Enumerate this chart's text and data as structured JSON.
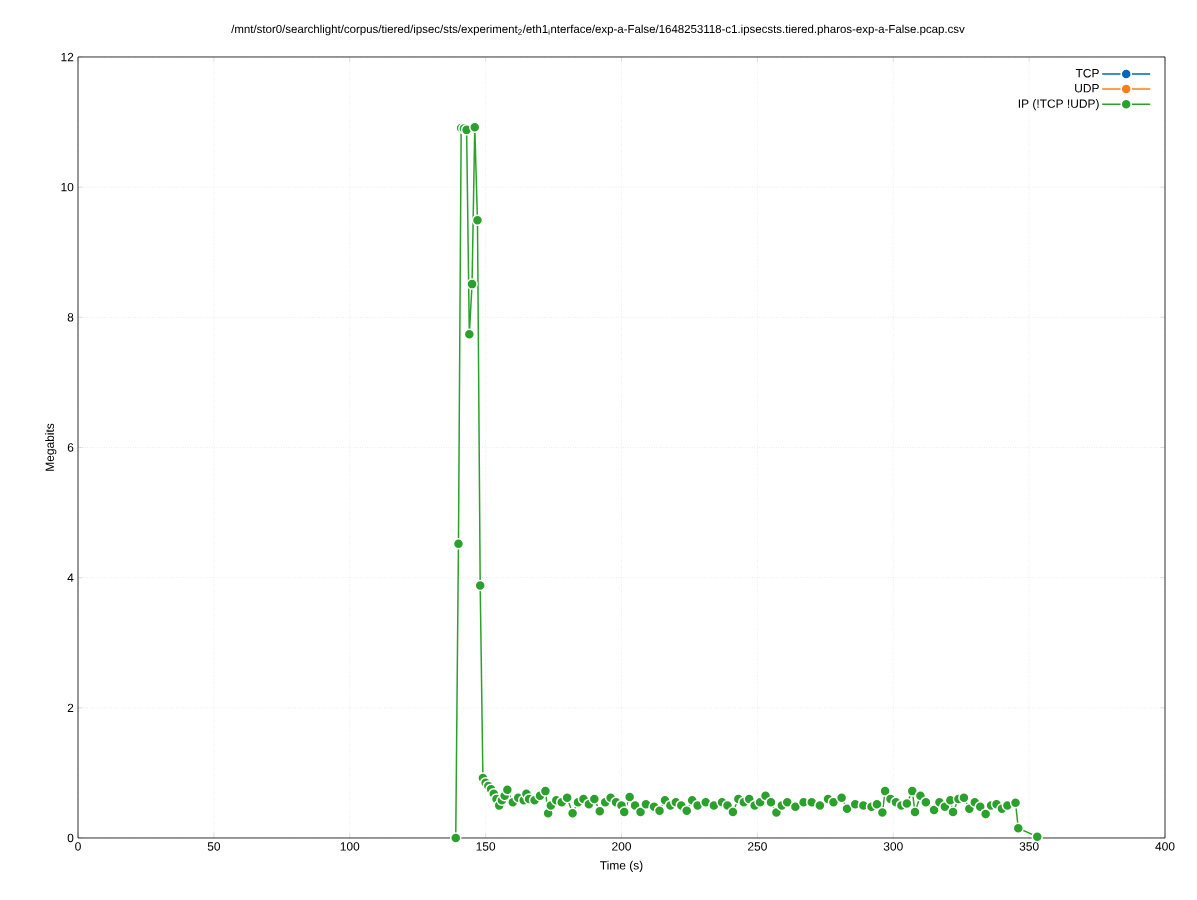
{
  "chart_data": {
    "type": "line",
    "title": "/mnt/stor0/searchlight/corpus/tiered/ipsec/sts/experiment$_{2}$/eth1$_{i}$nterface/exp-a-False/1648253118-c1.ipsecsts.tiered.pharos-exp-a-False.pcap.csv",
    "xlabel": "Time (s)",
    "ylabel": "Megabits",
    "xlim": [
      0,
      400
    ],
    "xticks": [
      0,
      50,
      100,
      150,
      200,
      250,
      300,
      350,
      400
    ],
    "ylim": [
      0,
      12
    ],
    "yticks": [
      0,
      2,
      4,
      6,
      8,
      10,
      12
    ],
    "grid": true,
    "legend": "top right",
    "marker": "circle",
    "line_style": "solid",
    "series": [
      {
        "name": "TCP",
        "color": "#0066b8"
      },
      {
        "name": "UDP",
        "color": "#ff7f0e"
      },
      {
        "name": "IP (!TCP  !UDP)",
        "color": "#2ca02c",
        "x": [
          139,
          140,
          141,
          142,
          143,
          144,
          145,
          146,
          147,
          148,
          149,
          150,
          151,
          152,
          153,
          154,
          155,
          156,
          157,
          158,
          160,
          162,
          164,
          165,
          166,
          168,
          170,
          172,
          173,
          174,
          176,
          178,
          180,
          182,
          184,
          186,
          188,
          190,
          192,
          194,
          196,
          198,
          200,
          201,
          203,
          205,
          207,
          209,
          212,
          214,
          216,
          218,
          220,
          222,
          224,
          226,
          228,
          231,
          234,
          237,
          239,
          241,
          243,
          245,
          247,
          249,
          251,
          253,
          255,
          257,
          259,
          261,
          264,
          267,
          270,
          273,
          276,
          278,
          281,
          283,
          286,
          289,
          292,
          294,
          296,
          297,
          299,
          301,
          303,
          305,
          307,
          308,
          310,
          312,
          315,
          317,
          319,
          321,
          322,
          324,
          326,
          328,
          330,
          332,
          334,
          336,
          338,
          340,
          342,
          345,
          346,
          353
        ],
        "values": [
          0,
          4.52,
          10.91,
          10.9,
          10.88,
          7.74,
          8.51,
          10.92,
          9.49,
          3.88,
          0.92,
          0.85,
          0.8,
          0.75,
          0.68,
          0.6,
          0.5,
          0.58,
          0.65,
          0.74,
          0.55,
          0.62,
          0.58,
          0.68,
          0.6,
          0.58,
          0.65,
          0.72,
          0.38,
          0.5,
          0.58,
          0.55,
          0.62,
          0.38,
          0.55,
          0.6,
          0.52,
          0.6,
          0.41,
          0.55,
          0.62,
          0.55,
          0.5,
          0.4,
          0.63,
          0.5,
          0.4,
          0.52,
          0.48,
          0.42,
          0.58,
          0.5,
          0.55,
          0.5,
          0.42,
          0.58,
          0.5,
          0.55,
          0.5,
          0.55,
          0.5,
          0.4,
          0.6,
          0.55,
          0.6,
          0.5,
          0.55,
          0.65,
          0.55,
          0.39,
          0.5,
          0.55,
          0.48,
          0.55,
          0.55,
          0.5,
          0.6,
          0.55,
          0.62,
          0.45,
          0.52,
          0.5,
          0.48,
          0.52,
          0.39,
          0.72,
          0.6,
          0.55,
          0.5,
          0.53,
          0.72,
          0.4,
          0.65,
          0.55,
          0.43,
          0.55,
          0.48,
          0.58,
          0.4,
          0.6,
          0.62,
          0.45,
          0.55,
          0.48,
          0.37,
          0.5,
          0.52,
          0.45,
          0.5,
          0.54,
          0.15,
          0.02
        ]
      }
    ]
  }
}
